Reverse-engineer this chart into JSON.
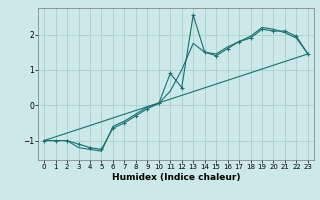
{
  "title": "",
  "xlabel": "Humidex (Indice chaleur)",
  "ylabel": "",
  "background_color": "#cce8e8",
  "grid_color": "#aacfcf",
  "line_color": "#1a7070",
  "xlim": [
    -0.5,
    23.5
  ],
  "ylim": [
    -1.55,
    2.75
  ],
  "xticks": [
    0,
    1,
    2,
    3,
    4,
    5,
    6,
    7,
    8,
    9,
    10,
    11,
    12,
    13,
    14,
    15,
    16,
    17,
    18,
    19,
    20,
    21,
    22,
    23
  ],
  "yticks": [
    -1,
    0,
    1,
    2
  ],
  "series1_x": [
    0,
    1,
    2,
    3,
    4,
    5,
    6,
    7,
    8,
    9,
    10,
    11,
    12,
    13,
    14,
    15,
    16,
    17,
    18,
    19,
    20,
    21,
    22,
    23
  ],
  "series1_y": [
    -1.0,
    -1.0,
    -1.0,
    -1.1,
    -1.2,
    -1.25,
    -0.65,
    -0.5,
    -0.3,
    -0.1,
    0.05,
    0.9,
    0.5,
    2.55,
    1.5,
    1.4,
    1.6,
    1.8,
    1.9,
    2.15,
    2.1,
    2.1,
    1.95,
    1.45
  ],
  "series2_x": [
    0,
    1,
    2,
    3,
    4,
    5,
    6,
    7,
    8,
    9,
    10,
    11,
    12,
    13,
    14,
    15,
    16,
    17,
    18,
    19,
    20,
    21,
    22,
    23
  ],
  "series2_y": [
    -1.0,
    -1.0,
    -1.0,
    -1.2,
    -1.25,
    -1.3,
    -0.6,
    -0.45,
    -0.25,
    -0.05,
    0.05,
    0.4,
    1.0,
    1.75,
    1.5,
    1.45,
    1.65,
    1.8,
    1.95,
    2.2,
    2.15,
    2.05,
    1.9,
    1.45
  ],
  "series3_x": [
    0,
    23
  ],
  "series3_y": [
    -1.0,
    1.45
  ],
  "xlabel_fontsize": 6.5,
  "tick_fontsize": 5.0
}
